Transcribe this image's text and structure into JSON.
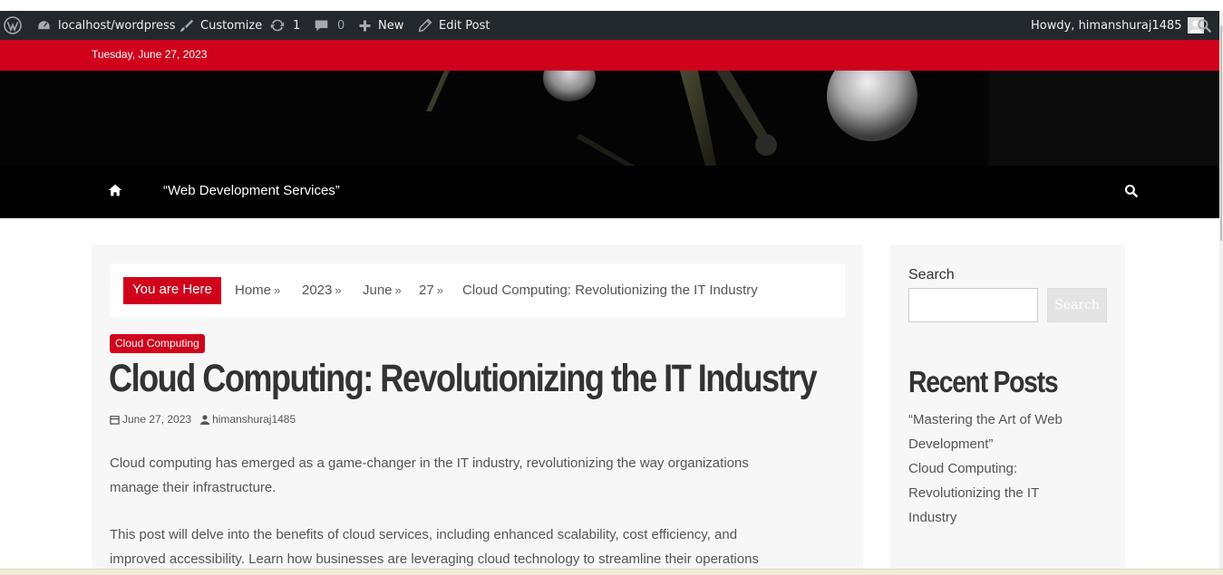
{
  "admin_bar": {
    "site_name": "localhost/wordpress",
    "customize_label": "Customize",
    "updates_count": "1",
    "comments_count": "0",
    "new_label": "New",
    "edit_post_label": "Edit Post",
    "howdy_text": "Howdy, himanshuraj1485"
  },
  "date_bar": {
    "date": "Tuesday, June 27, 2023"
  },
  "nav": {
    "menu_item": "“Web Development Services”"
  },
  "breadcrumb": {
    "label": "You are Here",
    "items": [
      "Home",
      "2023",
      "June",
      "27",
      "Cloud Computing: Revolutionizing the IT Industry"
    ]
  },
  "post": {
    "category": "Cloud Computing",
    "title": "Cloud Computing: Revolutionizing the IT Industry",
    "date": "June 27, 2023",
    "author": "himanshuraj1485",
    "paragraph_1_line_1": "Cloud computing has emerged as a game-changer in the IT industry, revolutionizing the way organizations",
    "paragraph_1_line_2": "manage their infrastructure.",
    "paragraph_2_line_1": "This post will delve into the benefits of cloud services, including enhanced scalability, cost efficiency, and",
    "paragraph_2_line_2": "improved accessibility. Learn how businesses are leveraging cloud technology to streamline their operations"
  },
  "sidebar": {
    "search_title": "Search",
    "search_button": "Search",
    "recent_title": "Recent Posts",
    "recent_posts": [
      {
        "line_1": "“Mastering the Art of Web",
        "line_2": "Development”"
      },
      {
        "line_1": "Cloud Computing:",
        "line_2": "Revolutionizing the IT",
        "line_3": "Industry"
      }
    ]
  },
  "colors": {
    "accent_red": "#d0021b",
    "admin_bar": "#23282d",
    "nav_bg": "#000000",
    "title_text": "#333333"
  }
}
